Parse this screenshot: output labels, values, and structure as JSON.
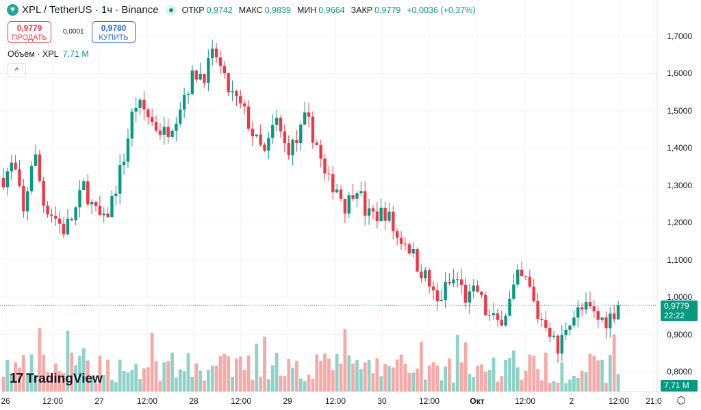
{
  "header": {
    "symbol": "XPL / TetherUS · 1ч · Binance",
    "open_label": "ОТКР",
    "open": "0,9742",
    "high_label": "МАКС",
    "high": "0,9839",
    "low_label": "МИН",
    "low": "0,9664",
    "close_label": "ЗАКР",
    "close": "0,9779",
    "change": "+0,0036 (+0,37%)"
  },
  "trade": {
    "sell_price": "0,9779",
    "sell_label": "ПРОДАТЬ",
    "spread": "0,0001",
    "buy_price": "0,9780",
    "buy_label": "КУПИТЬ"
  },
  "volume": {
    "label": "Объём · XPL",
    "value": "7,71 M",
    "tag": "7,71 M"
  },
  "collapse_icon": "^",
  "price_tag": {
    "price": "0,9779",
    "countdown": "22:22"
  },
  "price_axis": [
    "1,7000",
    "1,6000",
    "1,5000",
    "1,4000",
    "1,3000",
    "1,2000",
    "1,1000",
    "1,0000",
    "0,9000",
    "0,8000"
  ],
  "time_axis": [
    "26",
    "12:00",
    "27",
    "12:00",
    "28",
    "12:00",
    "29",
    "12:00",
    "30",
    "12:00",
    "Окт",
    "12:00",
    "2",
    "12:00",
    "21:0"
  ],
  "watermark": "TradingView",
  "colors": {
    "up": "#089981",
    "down": "#f23645",
    "up_vol": "#8fd2c8",
    "down_vol": "#f7a9a7"
  },
  "chart_data": {
    "type": "candlestick",
    "price_range": [
      0.8,
      1.7
    ],
    "last_price": 0.9779,
    "close_keypoints": [
      1.32,
      1.36,
      1.22,
      1.4,
      1.25,
      1.22,
      1.18,
      1.22,
      1.3,
      1.23,
      1.2,
      1.28,
      1.38,
      1.52,
      1.5,
      1.46,
      1.44,
      1.48,
      1.55,
      1.6,
      1.6,
      1.66,
      1.57,
      1.53,
      1.49,
      1.42,
      1.38,
      1.48,
      1.4,
      1.41,
      1.48,
      1.42,
      1.31,
      1.3,
      1.24,
      1.31,
      1.22,
      1.22,
      1.23,
      1.16,
      1.15,
      1.09,
      1.05,
      0.98,
      1.03,
      1.05,
      0.99,
      1.02,
      0.95,
      0.93,
      0.97,
      1.05,
      1.04,
      0.95,
      0.93,
      0.85,
      0.94,
      0.96,
      0.97,
      0.94,
      0.94,
      0.978
    ],
    "candle_count": 154
  }
}
